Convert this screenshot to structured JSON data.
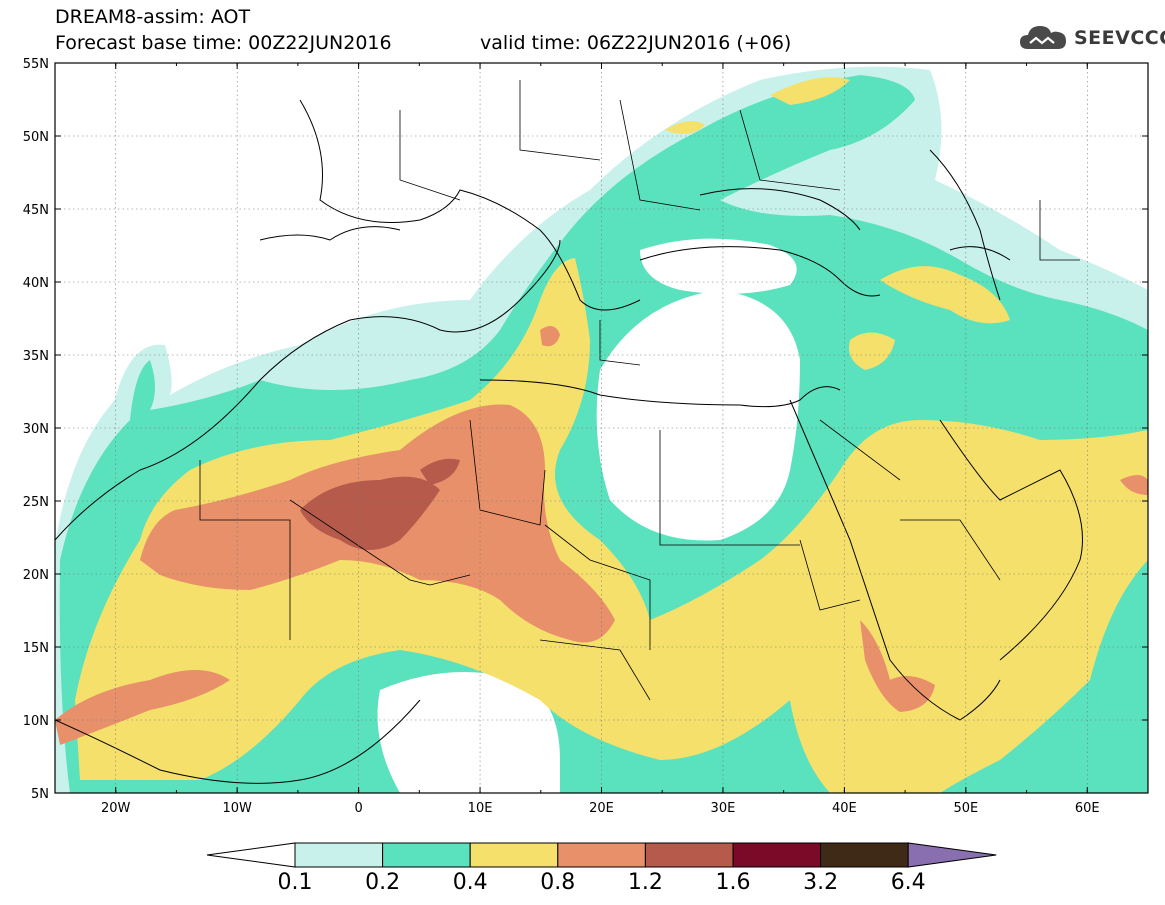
{
  "title": {
    "model": "DREAM8-assim: AOT",
    "base_time": "Forecast base time: 00Z22JUN2016",
    "valid_time": "valid time: 06Z22JUN2016 (+06)"
  },
  "logo": {
    "name": "SEEVCCC",
    "icon": "cloud-icon"
  },
  "axes": {
    "lat_labels": [
      "55N",
      "50N",
      "45N",
      "40N",
      "35N",
      "30N",
      "25N",
      "20N",
      "15N",
      "10N",
      "5N"
    ],
    "lon_labels": [
      "20W",
      "10W",
      "0",
      "10E",
      "20E",
      "30E",
      "40E",
      "50E",
      "60E"
    ]
  },
  "colorbar": {
    "levels": [
      "0.1",
      "0.2",
      "0.4",
      "0.8",
      "1.2",
      "1.6",
      "3.2",
      "6.4"
    ],
    "colors": [
      "#c8f1eb",
      "#5ae1bd",
      "#f5e06c",
      "#e8906a",
      "#b65a4c",
      "#7a0a28",
      "#3f2a17",
      "#8a6fb0"
    ],
    "under_color": "#ffffff"
  },
  "palette": {
    "c1": "#c8f1eb",
    "c2": "#5ae1bd",
    "c3": "#f5e06c",
    "c4": "#e8906a",
    "c5": "#b65a4c"
  }
}
